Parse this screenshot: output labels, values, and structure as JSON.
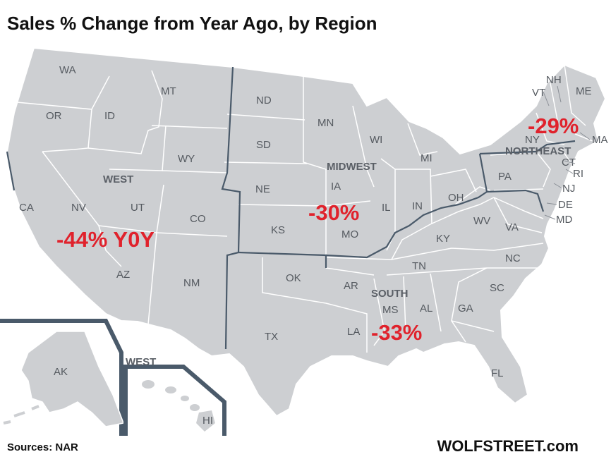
{
  "title": "Sales % Change from Year Ago, by Region",
  "source": "Sources: NAR",
  "brand": "WOLFSTREET.com",
  "colors": {
    "land": "#cdcfd2",
    "region_border": "#4a5a6a",
    "state_border": "#ffffff",
    "highlight": "#e0222c"
  },
  "regions": [
    {
      "name": "WEST",
      "change": "-44% Y0Y",
      "value": -44
    },
    {
      "name": "MIDWEST",
      "change": "-30%",
      "value": -30
    },
    {
      "name": "SOUTH",
      "change": "-33%",
      "value": -33
    },
    {
      "name": "NORTHEAST",
      "change": "-29%",
      "value": -29
    }
  ],
  "inset_region_label": "WEST",
  "states": {
    "WA": "WA",
    "OR": "OR",
    "CA": "CA",
    "ID": "ID",
    "NV": "NV",
    "MT": "MT",
    "WY": "WY",
    "UT": "UT",
    "CO": "CO",
    "AZ": "AZ",
    "NM": "NM",
    "ND": "ND",
    "SD": "SD",
    "NE": "NE",
    "KS": "KS",
    "MN": "MN",
    "IA": "IA",
    "MO": "MO",
    "WI": "WI",
    "IL": "IL",
    "MI": "MI",
    "IN": "IN",
    "OH": "OH",
    "OK": "OK",
    "TX": "TX",
    "AR": "AR",
    "LA": "LA",
    "MS": "MS",
    "AL": "AL",
    "TN": "TN",
    "KY": "KY",
    "GA": "GA",
    "FL": "FL",
    "SC": "SC",
    "NC": "NC",
    "VA": "VA",
    "WV": "WV",
    "MD": "MD",
    "DE": "DE",
    "PA": "PA",
    "NY": "NY",
    "NJ": "NJ",
    "CT": "CT",
    "RI": "RI",
    "MA": "MA",
    "VT": "VT",
    "NH": "NH",
    "ME": "ME",
    "AK": "AK",
    "HI": "HI"
  }
}
